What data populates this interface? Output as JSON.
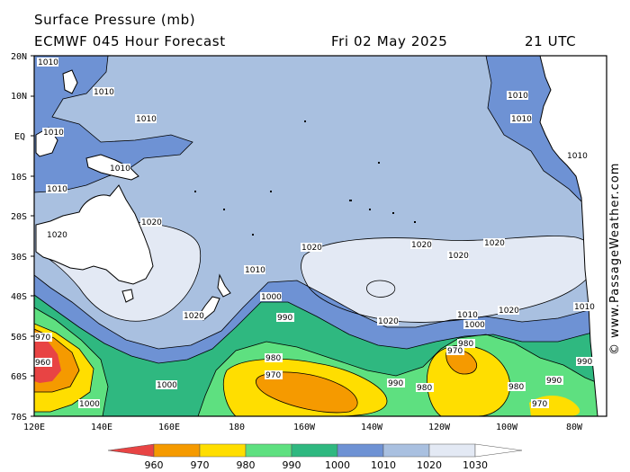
{
  "header": {
    "title": "Surface Pressure (mb)",
    "model": "ECMWF 045 Hour Forecast",
    "date": "Fri 02 May 2025",
    "time": "21 UTC"
  },
  "axes": {
    "lat_labels": [
      "20N",
      "10N",
      "EQ",
      "10S",
      "20S",
      "30S",
      "40S",
      "50S",
      "60S",
      "70S"
    ],
    "lon_labels": [
      "120E",
      "140E",
      "160E",
      "180",
      "160W",
      "140W",
      "120W",
      "100W",
      "80W"
    ]
  },
  "colors": {
    "p1030": "#e3e9f4",
    "p1020": "#a9c0e0",
    "p1010": "#6e92d4",
    "p1000": "#2fb880",
    "p990": "#5ee080",
    "p980": "#ffde00",
    "p970": "#f59a00",
    "p960": "#e84444",
    "land": "#ffffff"
  },
  "isobar_labels": [
    "1010",
    "1020",
    "1000",
    "990",
    "980",
    "970",
    "960"
  ],
  "colorbar": {
    "values": [
      "960",
      "970",
      "980",
      "990",
      "1000",
      "1010",
      "1020",
      "1030"
    ]
  },
  "copyright": "© www.PassageWeather.com"
}
